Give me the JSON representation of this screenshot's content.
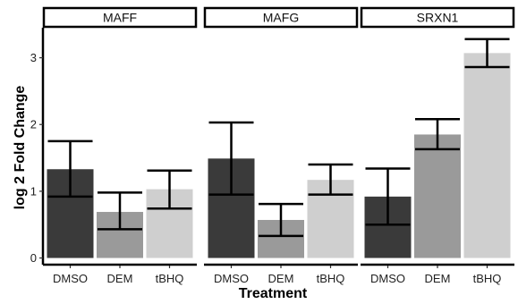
{
  "chart_data": {
    "type": "bar",
    "facets": [
      "MAFF",
      "MAFG",
      "SRXN1"
    ],
    "categories": [
      "DMSO",
      "DEM",
      "tBHQ"
    ],
    "colors": {
      "DMSO": "#3a3a3a",
      "DEM": "#9a9a9a",
      "tBHQ": "#cfcfcf"
    },
    "panels": [
      {
        "facet": "MAFF",
        "values": [
          1.33,
          0.69,
          1.03
        ],
        "err_low": [
          0.92,
          0.43,
          0.74
        ],
        "err_high": [
          1.75,
          0.98,
          1.31
        ]
      },
      {
        "facet": "MAFG",
        "values": [
          1.49,
          0.57,
          1.17
        ],
        "err_low": [
          0.95,
          0.33,
          0.95
        ],
        "err_high": [
          2.03,
          0.81,
          1.4
        ]
      },
      {
        "facet": "SRXN1",
        "values": [
          0.92,
          1.85,
          3.07
        ],
        "err_low": [
          0.5,
          1.63,
          2.86
        ],
        "err_high": [
          1.34,
          2.08,
          3.28
        ]
      }
    ],
    "xlabel": "Treatment",
    "ylabel": "log 2 Fold Change",
    "ylim": [
      -0.1,
      3.45
    ],
    "yticks": [
      0,
      1,
      2,
      3
    ],
    "grid": false,
    "legend": "none"
  }
}
